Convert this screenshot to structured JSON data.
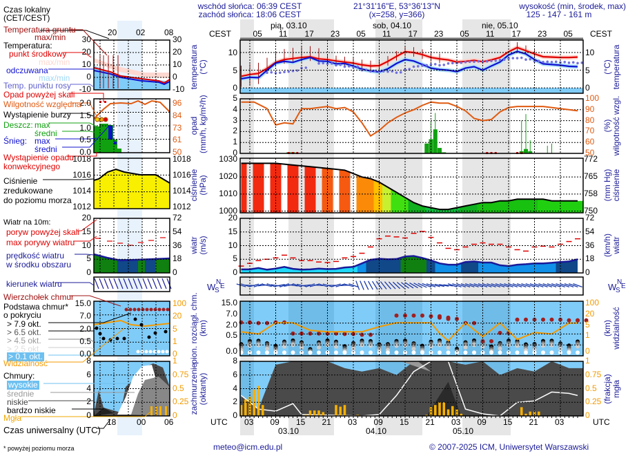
{
  "header": {
    "sunrise": "wschód słońca: 06:39 CEST",
    "sunset": "zachód słońca: 18:06 CEST",
    "coords": "21°31'16\"E, 53°36'13\"N",
    "grid": "(x=258,  y=366)",
    "elevation_label": "wysokość (min, środek, max)",
    "elevation_values": "125 - 147 - 161 m"
  },
  "top_axis": {
    "left_label": "CEST",
    "right_label": "CEST",
    "days": [
      "pią, 03.10",
      "sob, 04.10",
      "nie, 05.10"
    ],
    "hours": [
      "05",
      "11",
      "17",
      "23",
      "05",
      "11",
      "17",
      "23",
      "05",
      "11",
      "17",
      "23",
      "05"
    ]
  },
  "bottom_axis": {
    "left_label": "UTC",
    "right_label": "UTC",
    "hours": [
      "03",
      "09",
      "15",
      "21",
      "03",
      "09",
      "15",
      "21",
      "03",
      "09",
      "15",
      "21",
      "03"
    ],
    "dates": [
      "03.10",
      "04.10",
      "05.10"
    ]
  },
  "legend": {
    "local_time": "Czas lokalny",
    "local_time_zone": "(CET/CEST)",
    "local_ticks": [
      "20",
      "02",
      "08"
    ],
    "utc_ticks": [
      "18",
      "00",
      "06"
    ],
    "ground_temp": "Temperatura gruntu",
    "ground_temp_sub": "max/min",
    "temperature": "Temperatura:",
    "mid_point": "punkt środkowy",
    "maxmin1": "max/min",
    "apparent": "odczuwana",
    "maxmin2": "max/min",
    "dew_point": "Temp. punktu rosy",
    "precip_over": "Opad powyżej skali",
    "humidity": "Wilgotność względna",
    "storm": "Wystąpienie burzy",
    "rain": "Deszcz:",
    "rain_max": "max",
    "rain_mean": "średni",
    "snow": "Śnieg:",
    "snow_max": "max",
    "snow_mean": "średni",
    "convective1": "Wystąpienie opadu",
    "convective2": "konwekcyjnego",
    "pressure1": "Ciśnienie",
    "pressure2": "zredukowane",
    "pressure3": "do poziomu morza",
    "wind10": "Wiatr na 10m:",
    "gust_over": "poryw powyżej skali",
    "max_gust": "max porywy wiatru",
    "wind_speed1": "prędkość wiatru",
    "wind_speed2": "w środku obszaru",
    "wind_dir": "kierunek wiatru",
    "cloud_top": "Wierzchołek chmur",
    "cloud_base1": "Podstawa chmur*",
    "cloud_base2": "o pokryciu",
    "okt79": "> 7.9 okt.",
    "okt65": "> 6.5 okt.",
    "okt45": "> 4.5 okt.",
    "okt25": "> 2.5 okt.",
    "okt01": "> 0.1 okt.",
    "visibility": "Widzialność",
    "clouds": "Chmury:",
    "high": "wysokie",
    "mid": "średnie",
    "low": "niskie",
    "very_low": "bardzo niskie",
    "fog": "Mgła",
    "utc_label": "Czas uniwersalny (UTC)",
    "footnote": "* powyżej poziomu morza",
    "mini_ticks": {
      "temp_l": [
        "30",
        "20",
        "10",
        "0",
        "-10"
      ],
      "temp_r": [
        "30",
        "20",
        "10",
        "0",
        "-10"
      ],
      "prec_l": [
        "2.0",
        "1.5",
        "1.0",
        "0.5",
        "0.0"
      ],
      "prec_r": [
        "96",
        "84",
        "73",
        "61",
        "50"
      ],
      "pres": [
        "1018",
        "1016",
        "1014",
        "1012"
      ],
      "wind_l": [
        "20",
        "15",
        "10",
        "5",
        "0"
      ],
      "wind_r": [
        "72",
        "54",
        "36",
        "18",
        "0"
      ],
      "cb_l": [
        "15.0",
        "7.0",
        "2.0",
        "0.5",
        "0.0"
      ],
      "cb_r": [
        "100",
        "20",
        "5",
        "1",
        "0"
      ],
      "cc_l": [
        "8",
        "6",
        "4",
        "2",
        "0"
      ],
      "cc_r": [
        "1",
        "0.75",
        "0.5",
        "0.25",
        "0"
      ]
    }
  },
  "panels": {
    "temp": {
      "left": "temperatura",
      "left2": "(°C)",
      "right": "temperatura",
      "right2": "(°C)",
      "ticks": [
        "10",
        "5",
        "0"
      ]
    },
    "precip": {
      "left": "opad",
      "left2": "(mm/h, kg/m²/h)",
      "right": "wilgotność wzgl.",
      "right2": "(%)",
      "ticks_l": [
        "5",
        "4",
        "3",
        "2",
        "1",
        "0"
      ],
      "ticks_r": [
        "100",
        "90",
        "80",
        "70",
        "60",
        "50"
      ]
    },
    "pressure": {
      "left": "ciśnienie",
      "left2": "(hPa)",
      "right": "ciśnienie",
      "right2": "(mm Hg)",
      "ticks_l": [
        "1030",
        "1020",
        "1010",
        "1000"
      ],
      "ticks_r": [
        "772",
        "765",
        "758",
        "750"
      ]
    },
    "wind": {
      "left": "wiatr",
      "left2": "(m/s)",
      "right": "wiatr",
      "right2": "(km/h)",
      "ticks_l": [
        "20",
        "15",
        "10",
        "5",
        "0"
      ],
      "ticks_r": [
        "72",
        "54",
        "36",
        "18",
        "0"
      ]
    },
    "winddir": {
      "compass": "WNSE"
    },
    "cloudbase": {
      "left": "pion. rozciągł. chm.",
      "left2": "(km)",
      "right": "widzialność",
      "right2": "(km)",
      "ticks_l": [
        "15.0",
        "7.0",
        "2.0",
        "0.5",
        "0.0"
      ],
      "ticks_r": [
        "100",
        "20",
        "5",
        "1",
        "0"
      ]
    },
    "cloudcover": {
      "left": "zachmurzenie",
      "left2": "(oktanty)",
      "right": "mgła",
      "right2": "(frakcja)",
      "ticks_l": [
        "8",
        "6",
        "4",
        "2",
        "0"
      ],
      "ticks_r": [
        "1",
        "0.75",
        "0.5",
        "0.25",
        "0"
      ]
    }
  },
  "footer": {
    "email": "meteo@icm.edu.pl",
    "copyright": "© 2007-2025 ICM, Uniwersytet Warszawski"
  },
  "colors": {
    "temp": "#e00000",
    "apparent": "#1010d0",
    "dew": "#7070e0",
    "humidity": "#e05a10",
    "rain": "#10a010",
    "visibility": "#f39a00",
    "sky": "#80ccf8"
  },
  "chart_data": [
    {
      "type": "line",
      "title": "temperatura (°C)",
      "x_unit": "hours since 03.10 00 UTC",
      "ylim": [
        -1,
        14
      ],
      "x": [
        1,
        3,
        5,
        7,
        9,
        11,
        13,
        15,
        17,
        19,
        21,
        23,
        25,
        27,
        29,
        31,
        33,
        35,
        37,
        39,
        41,
        43,
        45,
        47,
        49,
        51,
        53,
        55,
        57,
        59,
        61,
        63,
        65,
        67,
        69,
        71,
        73,
        75,
        77,
        79
      ],
      "series": [
        {
          "name": "punkt środkowy",
          "values": [
            3.3,
            3.8,
            4.1,
            5.5,
            7.2,
            8.0,
            8.3,
            8.6,
            8.8,
            8.2,
            8.0,
            7.6,
            7.3,
            7.0,
            6.5,
            6.2,
            6.3,
            7.5,
            8.9,
            10.2,
            10.0,
            9.4,
            8.6,
            8.2,
            7.9,
            7.3,
            7.5,
            7.8,
            7.4,
            7.9,
            8.6,
            10.2,
            11.4,
            10.5,
            9.6,
            8.8,
            8.7,
            8.6,
            8.6,
            8.7
          ]
        },
        {
          "name": "odczuwana",
          "values": [
            2.6,
            3.0,
            2.9,
            5.0,
            7.0,
            7.5,
            7.2,
            8.0,
            8.6,
            7.6,
            7.5,
            6.8,
            6.9,
            6.2,
            5.3,
            4.8,
            4.5,
            5.4,
            6.9,
            8.0,
            7.6,
            6.6,
            5.6,
            5.2,
            5.0,
            4.6,
            5.6,
            6.0,
            5.0,
            6.2,
            7.3,
            9.3,
            10.3,
            9.6,
            8.0,
            6.8,
            6.6,
            6.4,
            6.1,
            6.0
          ]
        },
        {
          "name": "temp. punktu rosy",
          "values": [
            null,
            null,
            null,
            4.3,
            4.2,
            4.5,
            4.8,
            5.6,
            null,
            6.9,
            6.8,
            6.4,
            6.0,
            5.9,
            5.0,
            4.7,
            4.6,
            4.6,
            4.3,
            5.2,
            6.0,
            6.3,
            6.6,
            6.4,
            6.9,
            7.0,
            7.3,
            7.4,
            7.4,
            7.6,
            7.9,
            8.3,
            8.4,
            8.0,
            7.5,
            7.3,
            7.3,
            7.2,
            7.1,
            7.0
          ]
        }
      ]
    },
    {
      "type": "bar",
      "title": "opad (mm/h) / wilgotność wzgl. (%)",
      "x_unit": "hours since 03.10 00 UTC",
      "ylim": [
        0,
        5
      ],
      "y2lim": [
        50,
        100
      ],
      "humidity_x": [
        1,
        4,
        7,
        9,
        11,
        13,
        15,
        17,
        19,
        21,
        23,
        25,
        27,
        29,
        31,
        33,
        35,
        37,
        39,
        41,
        43,
        45,
        47,
        49,
        51,
        53,
        55,
        57,
        59,
        61,
        63,
        65,
        67,
        69,
        71,
        73,
        75,
        77,
        79
      ],
      "humidity": [
        97,
        97,
        91,
        76,
        78,
        77,
        91,
        91,
        92,
        93,
        91,
        92,
        88,
        78,
        66,
        71,
        78,
        83,
        87,
        90,
        94,
        97,
        96,
        96,
        93,
        89,
        82,
        80,
        81,
        88,
        92,
        93,
        93,
        93,
        93,
        92,
        91,
        90,
        89
      ],
      "rain_x": [
        12,
        13,
        44,
        45,
        46,
        47,
        48,
        66,
        67,
        68
      ],
      "rain": [
        0.1,
        0.1,
        0.9,
        1.3,
        2.2,
        0.5,
        0.1,
        0.2,
        0.4,
        0.2
      ],
      "rain_max_x": [
        45,
        46,
        66,
        67,
        68,
        72,
        73
      ],
      "rain_max": [
        3.0,
        3.7,
        3.0,
        3.6,
        1.2,
        0.7,
        0.9
      ]
    },
    {
      "type": "area",
      "title": "ciśnienie (hPa)",
      "ylim": [
        1000,
        1030
      ],
      "x": [
        1,
        5,
        9,
        13,
        17,
        21,
        25,
        29,
        31,
        33,
        35,
        37,
        39,
        41,
        43,
        45,
        47,
        49,
        51,
        53,
        55,
        57,
        59,
        61,
        63,
        65,
        67,
        69,
        71,
        73,
        75,
        77,
        79
      ],
      "values": [
        1028,
        1028,
        1028,
        1027,
        1026,
        1025,
        1024,
        1020,
        1019,
        1017,
        1014,
        1011,
        1008,
        1005,
        1003,
        1002,
        1001,
        1001,
        1002,
        1003,
        1004,
        1005,
        1005,
        1006,
        1006,
        1007,
        1007,
        1007,
        1007,
        1006,
        1006,
        1006,
        1006
      ]
    },
    {
      "type": "line",
      "title": "wiatr (m/s)",
      "ylim": [
        0,
        20
      ],
      "x": [
        1,
        3,
        5,
        7,
        9,
        11,
        13,
        15,
        17,
        19,
        21,
        23,
        25,
        27,
        29,
        31,
        33,
        35,
        37,
        39,
        41,
        43,
        45,
        47,
        49,
        51,
        53,
        55,
        57,
        59,
        61,
        63,
        65,
        67,
        69,
        71,
        73,
        75,
        77,
        79
      ],
      "series": [
        {
          "name": "prędkość wiatru",
          "values": [
            1.3,
            1.3,
            1.8,
            1.2,
            1.6,
            2.2,
            1.5,
            1.2,
            1.3,
            1.6,
            1.4,
            1.5,
            2.0,
            2.2,
            3.5,
            4.8,
            5.2,
            5.0,
            5.1,
            6.0,
            6.2,
            5.5,
            4.6,
            3.5,
            3.0,
            3.0,
            4.0,
            4.2,
            3.8,
            3.8,
            2.8,
            2.5,
            3.0,
            3.2,
            3.5,
            3.5,
            3.7,
            4.0,
            4.2,
            5.0
          ]
        },
        {
          "name": "max porywy wiatru",
          "values": [
            2.5,
            3.5,
            4.5,
            5.0,
            5.5,
            6.5,
            5.5,
            4.5,
            4.5,
            4.0,
            3.8,
            4.2,
            5.5,
            6.0,
            7.2,
            9.5,
            12.5,
            13.5,
            13.2,
            12.8,
            14.5,
            15.2,
            13.0,
            11.0,
            9.0,
            8.5,
            9.5,
            10.5,
            11.0,
            10.5,
            10.5,
            9.5,
            8.5,
            8.0,
            9.5,
            9.8,
            9.5,
            10.5,
            11.5,
            12.5
          ]
        }
      ]
    },
    {
      "type": "scatter",
      "title": "pion. rozciągł. chm. (km) / widzialność (km)",
      "ylim_labels": [
        "0.0",
        "0.5",
        "2.0",
        "7.0",
        "15.0"
      ],
      "x": [
        1,
        5,
        9,
        13,
        17,
        21,
        25,
        29,
        33,
        37,
        41,
        45,
        47,
        49,
        53,
        57,
        61,
        65,
        69,
        73,
        77,
        79
      ],
      "cloud_top_km": [
        7.5,
        7.0,
        7.5,
        2.2,
        2.2,
        2.2,
        2.0,
        1.9,
        null,
        12.5,
        12.5,
        12.0,
        11.0,
        10.0,
        7.0,
        1.0,
        2.5,
        9.5,
        9.5,
        9.5,
        9.0,
        9.0
      ],
      "visibility_km": [
        8,
        5,
        22,
        22,
        10,
        8,
        8,
        8,
        15,
        22,
        22,
        22,
        6,
        2.5,
        22,
        4,
        22,
        3,
        7,
        5,
        20,
        20
      ]
    },
    {
      "type": "area",
      "title": "zachmurzenie (oktanty) / mgła (frakcja)",
      "ylim": [
        0,
        8
      ],
      "y2lim": [
        0,
        1
      ],
      "x": [
        1,
        5,
        9,
        13,
        17,
        21,
        25,
        29,
        33,
        37,
        41,
        45,
        49,
        53,
        57,
        61,
        65,
        69,
        73,
        77,
        79
      ],
      "total_cloud_okt": [
        3,
        1,
        7.5,
        8,
        8,
        8,
        7,
        6.5,
        7,
        6,
        8,
        8,
        8,
        7.5,
        8,
        6,
        7,
        6.5,
        8,
        7,
        7
      ],
      "fog_x": [
        1,
        2,
        3,
        4,
        5,
        6,
        16,
        17,
        18,
        19,
        20,
        23,
        24,
        25,
        28,
        44,
        45,
        46,
        47,
        48,
        49,
        50,
        51,
        52,
        66,
        67,
        68,
        69,
        70
      ],
      "fog_fraction": [
        0.2,
        0.3,
        0.35,
        0.48,
        0.55,
        0.2,
        0.02,
        0.1,
        0.1,
        0.1,
        0.07,
        0.2,
        0.17,
        0.2,
        0.02,
        0.02,
        0.16,
        0.2,
        0.25,
        0.25,
        0.12,
        0.18,
        0.12,
        0.04,
        0.16,
        0.04,
        0.08,
        0.08,
        0.08
      ]
    }
  ]
}
